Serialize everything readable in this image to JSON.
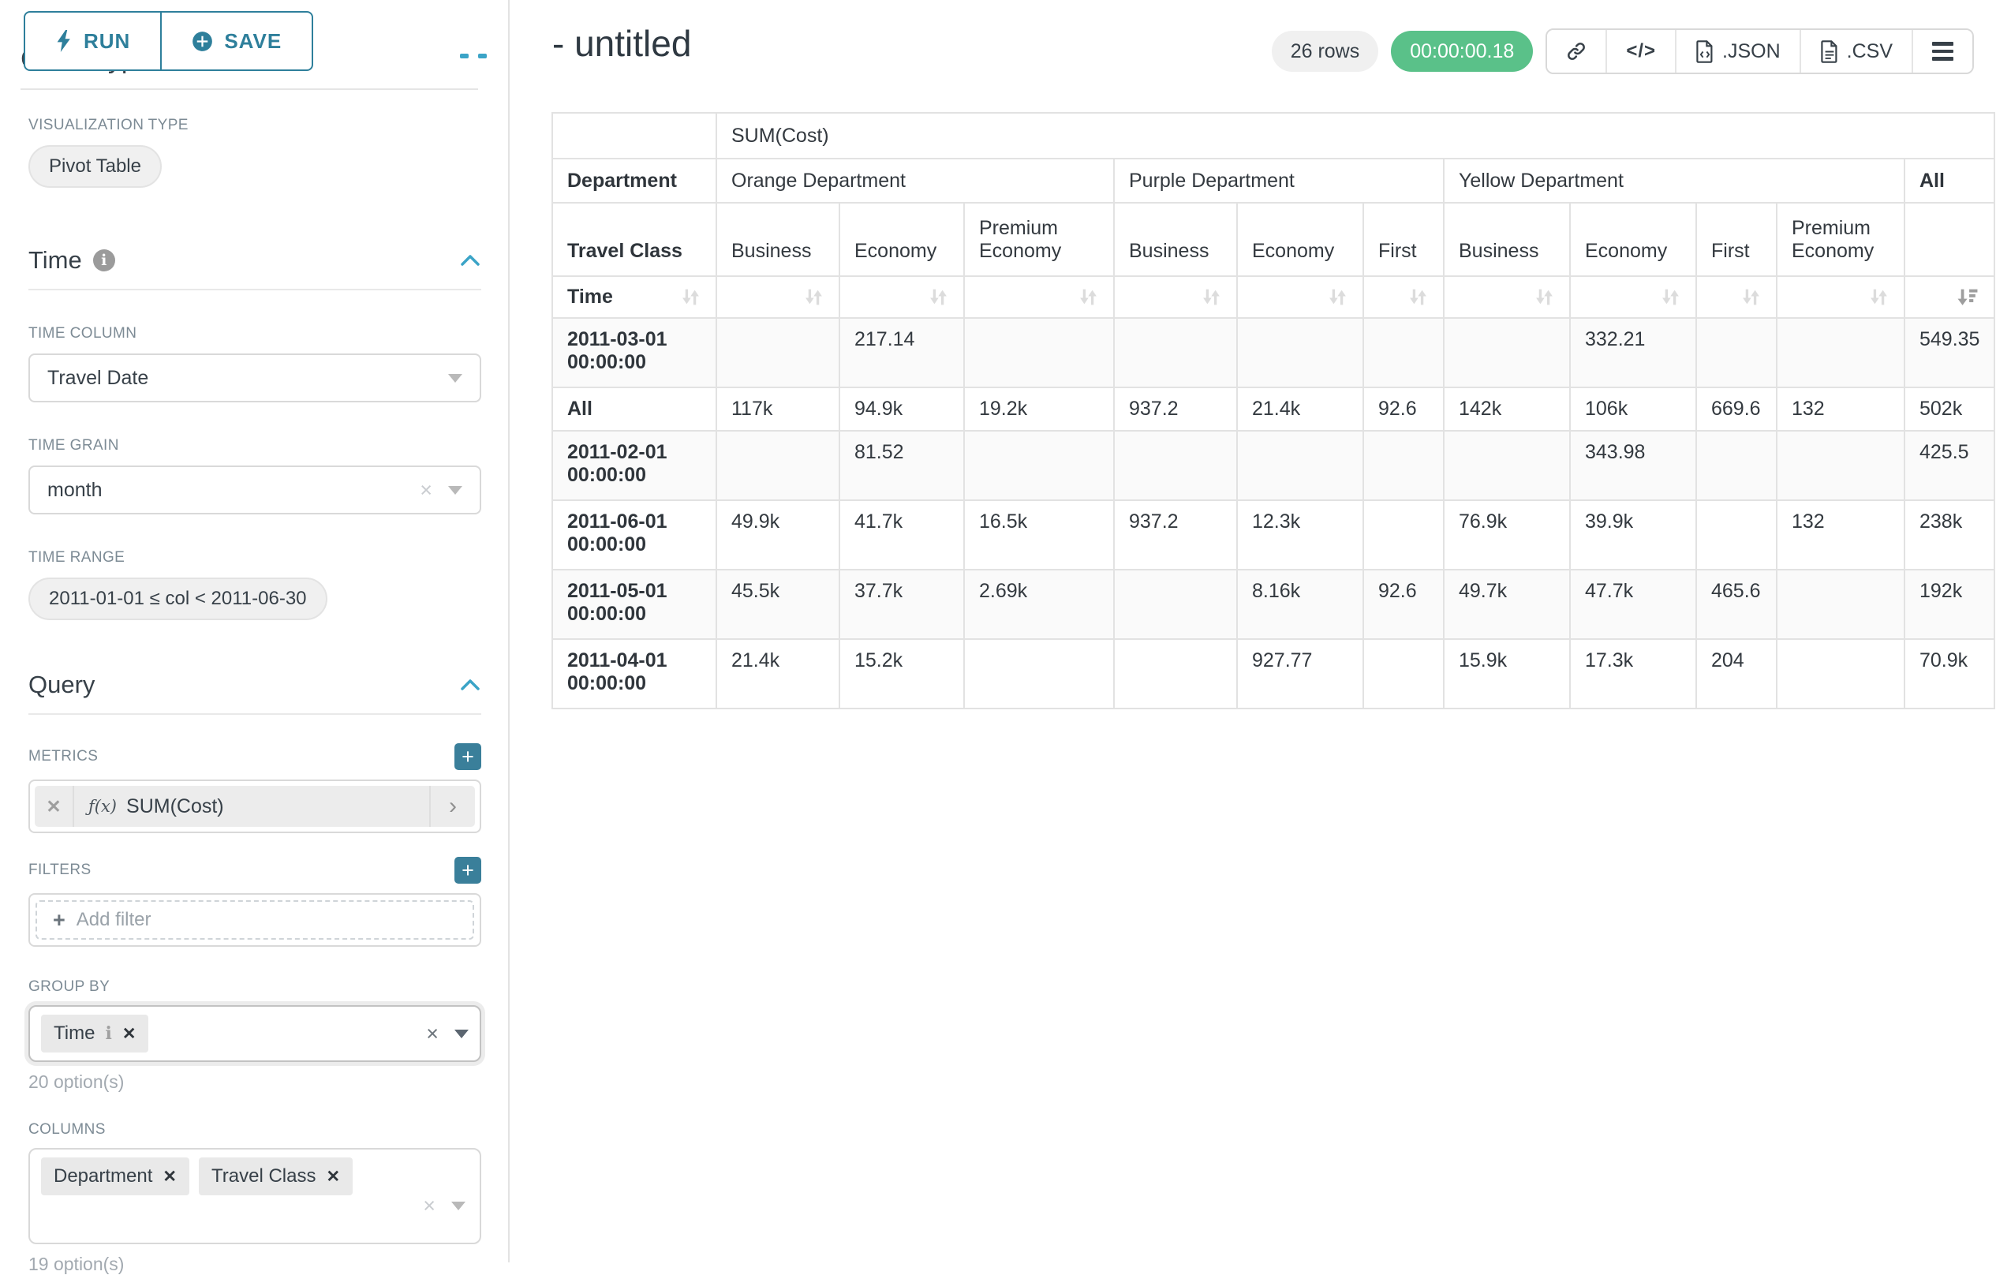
{
  "panel": {
    "run_label": "RUN",
    "save_label": "SAVE",
    "chart_type_heading": "Chart Type",
    "viz_type_label": "VISUALIZATION TYPE",
    "viz_type_value": "Pivot Table",
    "time_section": {
      "title": "Time",
      "time_column_label": "TIME COLUMN",
      "time_column_value": "Travel Date",
      "time_grain_label": "TIME GRAIN",
      "time_grain_value": "month",
      "time_range_label": "TIME RANGE",
      "time_range_value": "2011-01-01 ≤ col < 2011-06-30"
    },
    "query_section": {
      "title": "Query",
      "metrics_label": "METRICS",
      "metric_prefix": "ƒ(x)",
      "metric_value": "SUM(Cost)",
      "filters_label": "FILTERS",
      "add_filter_label": "Add filter",
      "group_by_label": "GROUP BY",
      "group_by_tags": [
        "Time"
      ],
      "group_by_options": "20 option(s)",
      "columns_label": "COLUMNS",
      "columns_tags": [
        "Department",
        "Travel Class"
      ],
      "columns_options": "19 option(s)"
    }
  },
  "header": {
    "title": "- untitled",
    "rows_badge": "26 rows",
    "duration_badge": "00:00:00.18",
    "code_label": "</>",
    "json_label": ".JSON",
    "csv_label": ".CSV"
  },
  "colors": {
    "primary": "#2e7f9b",
    "accent": "#3ba4c7",
    "success": "#5ac189"
  },
  "table": {
    "metric_header": "SUM(Cost)",
    "corner_labels": {
      "department": "Department",
      "travel_class": "Travel Class",
      "time": "Time"
    },
    "groups": [
      {
        "label": "Orange Department",
        "cols": [
          "Business",
          "Economy",
          "Premium Economy"
        ]
      },
      {
        "label": "Purple Department",
        "cols": [
          "Business",
          "Economy",
          "First"
        ]
      },
      {
        "label": "Yellow Department",
        "cols": [
          "Business",
          "Economy",
          "First",
          "Premium Economy"
        ]
      },
      {
        "label": "All",
        "cols": [
          ""
        ]
      }
    ],
    "sort_state": {
      "sorted_column_index": 10,
      "direction": "descending"
    },
    "rows": [
      {
        "label": "2011-03-01 00:00:00",
        "values": [
          "",
          "217.14",
          "",
          "",
          "",
          "",
          "",
          "332.21",
          "",
          "",
          "549.35"
        ]
      },
      {
        "label": "All",
        "values": [
          "117k",
          "94.9k",
          "19.2k",
          "937.2",
          "21.4k",
          "92.6",
          "142k",
          "106k",
          "669.6",
          "132",
          "502k"
        ]
      },
      {
        "label": "2011-02-01 00:00:00",
        "values": [
          "",
          "81.52",
          "",
          "",
          "",
          "",
          "",
          "343.98",
          "",
          "",
          "425.5"
        ]
      },
      {
        "label": "2011-06-01 00:00:00",
        "values": [
          "49.9k",
          "41.7k",
          "16.5k",
          "937.2",
          "12.3k",
          "",
          "76.9k",
          "39.9k",
          "",
          "132",
          "238k"
        ]
      },
      {
        "label": "2011-05-01 00:00:00",
        "values": [
          "45.5k",
          "37.7k",
          "2.69k",
          "",
          "8.16k",
          "92.6",
          "49.7k",
          "47.7k",
          "465.6",
          "",
          "192k"
        ]
      },
      {
        "label": "2011-04-01 00:00:00",
        "values": [
          "21.4k",
          "15.2k",
          "",
          "",
          "927.77",
          "",
          "15.9k",
          "17.3k",
          "204",
          "",
          "70.9k"
        ]
      }
    ]
  }
}
